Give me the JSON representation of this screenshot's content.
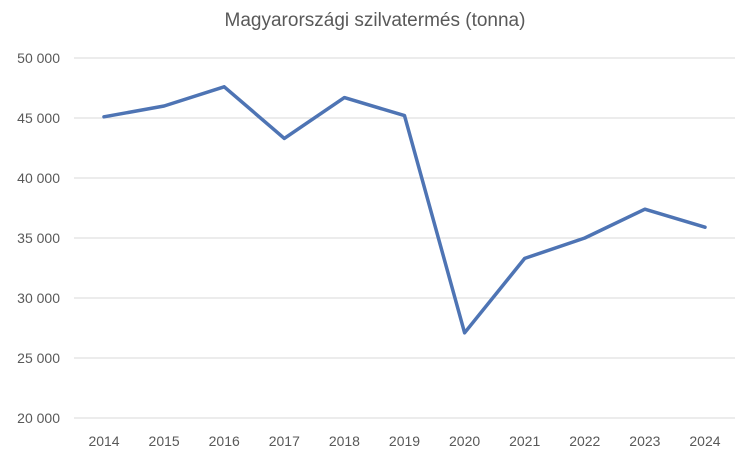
{
  "chart_data": {
    "type": "line",
    "title": "Magyarországi szilvatermés (tonna)",
    "xlabel": "",
    "ylabel": "",
    "categories": [
      "2014",
      "2015",
      "2016",
      "2017",
      "2018",
      "2019",
      "2020",
      "2021",
      "2022",
      "2023",
      "2024"
    ],
    "series": [
      {
        "values": [
          45100,
          46000,
          47600,
          43300,
          46700,
          45200,
          27100,
          33300,
          35000,
          37400,
          35900
        ]
      }
    ],
    "ylim": [
      20000,
      50000
    ],
    "yticks": [
      20000,
      25000,
      30000,
      35000,
      40000,
      45000,
      50000
    ],
    "ytick_labels": [
      "20 000",
      "25 000",
      "30 000",
      "35 000",
      "40 000",
      "45 000",
      "50 000"
    ],
    "grid": true,
    "legend": "none",
    "colors": {
      "line": "#4e74b4",
      "grid": "#d9d9d9",
      "text": "#595959"
    }
  }
}
